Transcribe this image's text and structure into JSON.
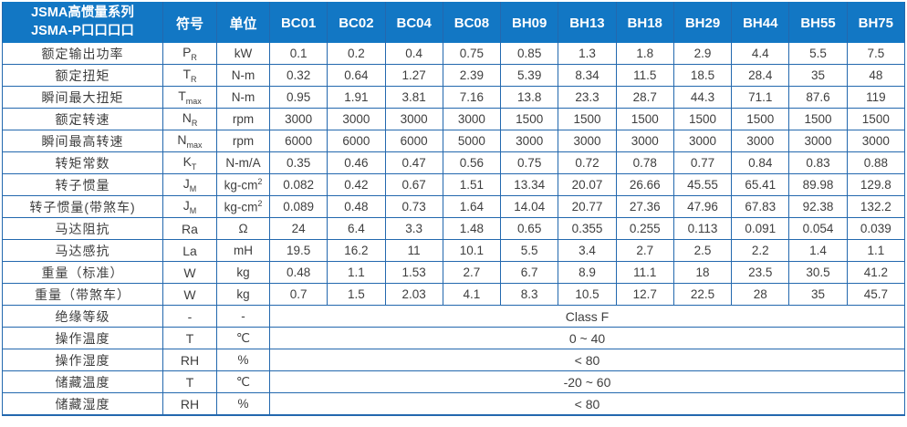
{
  "table": {
    "title_line1": "JSMA高惯量系列",
    "title_line2": "JSMA-P口口口口",
    "symbol_header": "符号",
    "unit_header": "单位",
    "models": [
      "BC01",
      "BC02",
      "BC04",
      "BC08",
      "BH09",
      "BH13",
      "BH18",
      "BH29",
      "BH44",
      "BH55",
      "BH75"
    ],
    "rows": [
      {
        "label": "额定输出功率",
        "symbol": "P",
        "symbol_sub": "R",
        "unit": "kW",
        "values": [
          "0.1",
          "0.2",
          "0.4",
          "0.75",
          "0.85",
          "1.3",
          "1.8",
          "2.9",
          "4.4",
          "5.5",
          "7.5"
        ]
      },
      {
        "label": "额定扭矩",
        "symbol": "T",
        "symbol_sub": "R",
        "unit": "N-m",
        "values": [
          "0.32",
          "0.64",
          "1.27",
          "2.39",
          "5.39",
          "8.34",
          "11.5",
          "18.5",
          "28.4",
          "35",
          "48"
        ]
      },
      {
        "label": "瞬间最大扭矩",
        "symbol": "T",
        "symbol_sub": "max",
        "unit": "N-m",
        "values": [
          "0.95",
          "1.91",
          "3.81",
          "7.16",
          "13.8",
          "23.3",
          "28.7",
          "44.3",
          "71.1",
          "87.6",
          "119"
        ]
      },
      {
        "label": "额定转速",
        "symbol": "N",
        "symbol_sub": "R",
        "unit": "rpm",
        "values": [
          "3000",
          "3000",
          "3000",
          "3000",
          "1500",
          "1500",
          "1500",
          "1500",
          "1500",
          "1500",
          "1500"
        ]
      },
      {
        "label": "瞬间最高转速",
        "symbol": "N",
        "symbol_sub": "max",
        "unit": "rpm",
        "values": [
          "6000",
          "6000",
          "6000",
          "5000",
          "3000",
          "3000",
          "3000",
          "3000",
          "3000",
          "3000",
          "3000"
        ]
      },
      {
        "label": "转矩常数",
        "symbol": "K",
        "symbol_sub": "T",
        "unit": "N-m/A",
        "values": [
          "0.35",
          "0.46",
          "0.47",
          "0.56",
          "0.75",
          "0.72",
          "0.78",
          "0.77",
          "0.84",
          "0.83",
          "0.88"
        ]
      },
      {
        "label": "转子惯量",
        "symbol": "J",
        "symbol_sub": "M",
        "unit": "kg-cm",
        "unit_sup": "2",
        "values": [
          "0.082",
          "0.42",
          "0.67",
          "1.51",
          "13.34",
          "20.07",
          "26.66",
          "45.55",
          "65.41",
          "89.98",
          "129.8"
        ]
      },
      {
        "label": "转子惯量(带煞车)",
        "symbol": "J",
        "symbol_sub": "M",
        "unit": "kg-cm",
        "unit_sup": "2",
        "values": [
          "0.089",
          "0.48",
          "0.73",
          "1.64",
          "14.04",
          "20.77",
          "27.36",
          "47.96",
          "67.83",
          "92.38",
          "132.2"
        ]
      },
      {
        "label": "马达阻抗",
        "symbol": "Ra",
        "unit": "Ω",
        "values": [
          "24",
          "6.4",
          "3.3",
          "1.48",
          "0.65",
          "0.355",
          "0.255",
          "0.113",
          "0.091",
          "0.054",
          "0.039"
        ]
      },
      {
        "label": "马达感抗",
        "symbol": "La",
        "unit": "mH",
        "values": [
          "19.5",
          "16.2",
          "11",
          "10.1",
          "5.5",
          "3.4",
          "2.7",
          "2.5",
          "2.2",
          "1.4",
          "1.1"
        ]
      },
      {
        "label": "重量（标准）",
        "symbol": "W",
        "unit": "kg",
        "values": [
          "0.48",
          "1.1",
          "1.53",
          "2.7",
          "6.7",
          "8.9",
          "11.1",
          "18",
          "23.5",
          "30.5",
          "41.2"
        ]
      },
      {
        "label": "重量（带煞车）",
        "symbol": "W",
        "unit": "kg",
        "values": [
          "0.7",
          "1.5",
          "2.03",
          "4.1",
          "8.3",
          "10.5",
          "12.7",
          "22.5",
          "28",
          "35",
          "45.7"
        ]
      }
    ],
    "env_rows": [
      {
        "label": "绝缘等级",
        "symbol": "-",
        "unit": "-",
        "value": "Class F"
      },
      {
        "label": "操作温度",
        "symbol": "T",
        "unit": "℃",
        "value": "0 ~ 40"
      },
      {
        "label": "操作湿度",
        "symbol": "RH",
        "unit": "%",
        "value": "< 80"
      },
      {
        "label": "储藏温度",
        "symbol": "T",
        "unit": "℃",
        "value": "-20 ~ 60"
      },
      {
        "label": "储藏湿度",
        "symbol": "RH",
        "unit": "%",
        "value": "< 80"
      }
    ],
    "colors": {
      "header_bg": "#1277c4",
      "border": "#2368ae",
      "text": "#3e3e3e",
      "header_text": "#ffffff"
    }
  }
}
